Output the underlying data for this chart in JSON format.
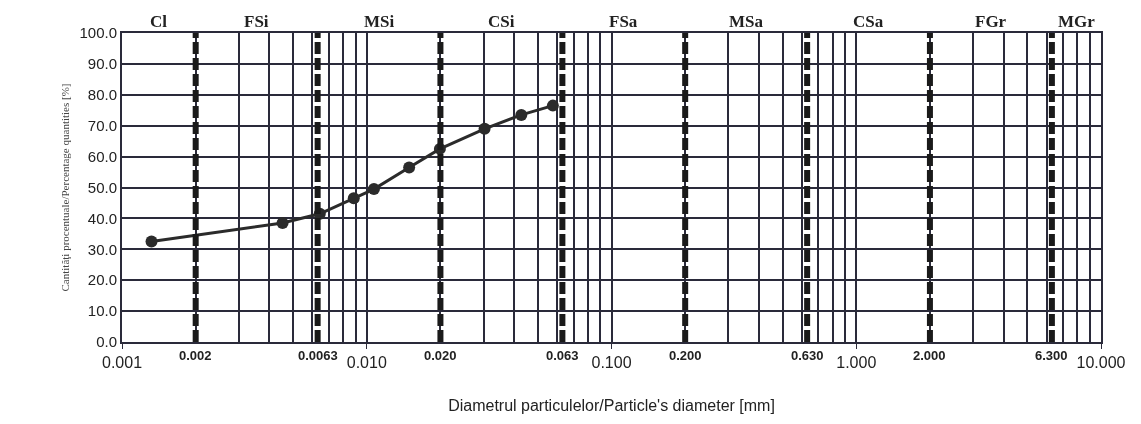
{
  "chart_data": {
    "type": "line",
    "xlabel": "Diametrul particulelor/Particle's diameter [mm]",
    "ylabel": "Cantităţi procentuale/Percentage quantities [%]",
    "x": [
      0.00132,
      0.00453,
      0.00643,
      0.00885,
      0.0107,
      0.0149,
      0.0199,
      0.0303,
      0.0428,
      0.0576
    ],
    "series": [
      {
        "color": "#2b2b2b",
        "values": [
          32.5,
          38.5,
          41.5,
          46.5,
          49.5,
          56.5,
          62.5,
          69.0,
          73.5,
          76.5
        ]
      }
    ],
    "marker": "circle",
    "line_style": "solid",
    "log": "x",
    "grid": true,
    "xlim": [
      0.001,
      10
    ],
    "xticks": [
      {
        "value": 0.001,
        "label": "0.001"
      },
      {
        "value": 0.01,
        "label": "0.010"
      },
      {
        "value": 0.1,
        "label": "0.100"
      },
      {
        "value": 1,
        "label": "1.000"
      },
      {
        "value": 10,
        "label": "10.000"
      }
    ],
    "ylim": [
      0,
      100
    ],
    "yticks": [
      {
        "value": 0,
        "label": "0.0"
      },
      {
        "value": 10,
        "label": "10.0"
      },
      {
        "value": 20,
        "label": "20.0"
      },
      {
        "value": 30,
        "label": "30.0"
      },
      {
        "value": 40,
        "label": "40.0"
      },
      {
        "value": 50,
        "label": "50.0"
      },
      {
        "value": 60,
        "label": "60.0"
      },
      {
        "value": 70,
        "label": "70.0"
      },
      {
        "value": 80,
        "label": "80.0"
      },
      {
        "value": 90,
        "label": "90.0"
      },
      {
        "value": 100,
        "label": "100.0"
      }
    ],
    "ref_lines": [
      {
        "axis": "x",
        "value": 0.002,
        "label": "0.002",
        "color": "#1a1a1a",
        "line_style": "dashed"
      },
      {
        "axis": "x",
        "value": 0.0063,
        "label": "0.0063",
        "color": "#1a1a1a",
        "line_style": "dashed"
      },
      {
        "axis": "x",
        "value": 0.02,
        "label": "0.020",
        "color": "#1a1a1a",
        "line_style": "dashed"
      },
      {
        "axis": "x",
        "value": 0.063,
        "label": "0.063",
        "color": "#1a1a1a",
        "line_style": "dashed"
      },
      {
        "axis": "x",
        "value": 0.2,
        "label": "0.200",
        "color": "#1a1a1a",
        "line_style": "dashed"
      },
      {
        "axis": "x",
        "value": 0.63,
        "label": "0.630",
        "color": "#1a1a1a",
        "line_style": "dashed"
      },
      {
        "axis": "x",
        "value": 2,
        "label": "2.000",
        "color": "#1a1a1a",
        "line_style": "dashed"
      },
      {
        "axis": "x",
        "value": 6.3,
        "label": "6.300",
        "color": "#1a1a1a",
        "line_style": "dashed"
      }
    ],
    "annotations": [
      "Cl",
      "FSi",
      "MSi",
      "CSi",
      "FSa",
      "MSa",
      "CSa",
      "FGr",
      "MGr"
    ]
  }
}
